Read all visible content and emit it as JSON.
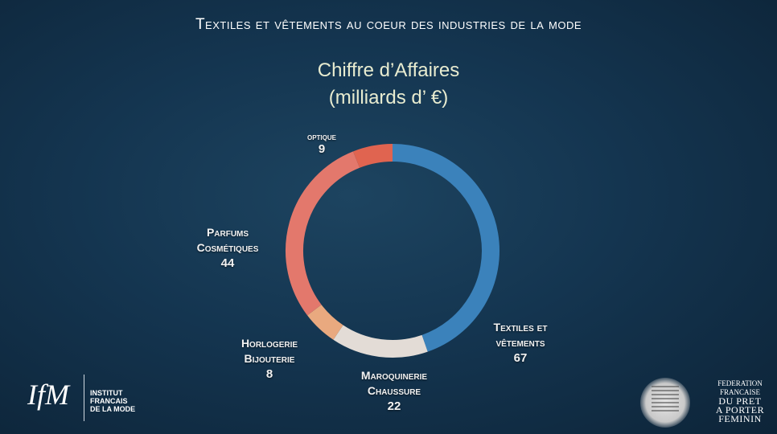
{
  "heading": "Textiles et vêtements au coeur des industries de la mode",
  "chart_data": {
    "type": "pie",
    "title": "Chiffre d’Affaires",
    "subtitle": "(milliards d’ €)",
    "donut": true,
    "slices": [
      {
        "line1": "Textiles et",
        "line2": "vêtements",
        "value": 67,
        "color": "#3b82bb"
      },
      {
        "line1": "Maroquinerie",
        "line2": "Chaussure",
        "value": 22,
        "color": "#e3dcd6"
      },
      {
        "line1": "Horlogerie",
        "line2": "Bijouterie",
        "value": 8,
        "color": "#e9a97f"
      },
      {
        "line1": "Parfums",
        "line2": "Cosmétiques",
        "value": 44,
        "color": "#e3786c"
      },
      {
        "line1": "optique",
        "line2": "",
        "value": 9,
        "color": "#e06450"
      }
    ]
  },
  "logos": {
    "ifm_mark": "IfM",
    "ifm_text": [
      "INSTITUT",
      "FRANCAIS",
      "DE LA MODE"
    ],
    "federation": [
      "FEDERATION",
      "FRANCAISE",
      "DU PRET",
      "A PORTER",
      "FEMININ"
    ]
  }
}
